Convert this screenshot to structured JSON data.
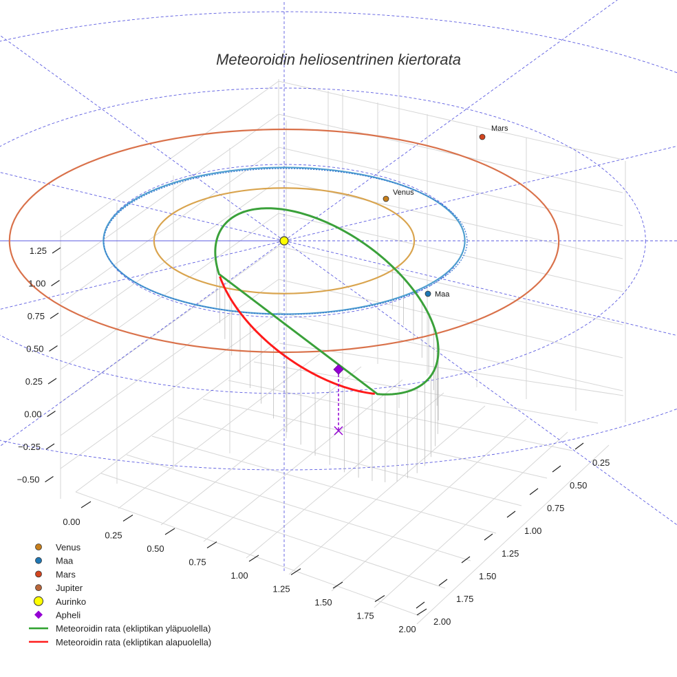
{
  "chart_data": {
    "type": "3d-line",
    "title": "Meteoroidin heliosentrinen kiertorata",
    "z_ticks": [
      "1.25",
      "1.00",
      "0.75",
      "0.50",
      "0.25",
      "0.00",
      "−0.25",
      "−0.50"
    ],
    "x_ticks": [
      "0.00",
      "0.25",
      "0.50",
      "0.75",
      "1.00",
      "1.25",
      "1.50",
      "1.75",
      "2.00"
    ],
    "y_ticks": [
      "0.25",
      "0.50",
      "0.75",
      "1.00",
      "1.25",
      "1.50",
      "1.75",
      "2.00"
    ],
    "sun": {
      "name": "Aurinko",
      "x": 0,
      "y": 0,
      "z": 0
    },
    "planets": [
      {
        "name": "Venus",
        "orbit_radius_au": 0.72,
        "label": "Venus"
      },
      {
        "name": "Maa",
        "orbit_radius_au": 1.0,
        "label": "Maa"
      },
      {
        "name": "Mars",
        "orbit_radius_au": 1.52,
        "label": "Mars"
      }
    ],
    "meteoroid_orbit": {
      "aphelion_distance_au": 1.13,
      "aphelion_height_au": 0.27,
      "above_ecliptic_series": "Meteoroidin rata (ekliptikan yläpuolella)",
      "below_ecliptic_series": "Meteoroidin rata (ekliptikan alapuolella)"
    },
    "legend": {
      "placement": "bottom-left",
      "entries": [
        {
          "label": "Venus",
          "marker": "circle",
          "color": "#d08a26"
        },
        {
          "label": "Maa",
          "marker": "circle",
          "color": "#1f77b4"
        },
        {
          "label": "Mars",
          "marker": "circle",
          "color": "#d2542a"
        },
        {
          "label": "Jupiter",
          "marker": "circle",
          "color": "#b9663a"
        },
        {
          "label": "Aurinko",
          "marker": "circle-large",
          "color": "#ffff00"
        },
        {
          "label": "Apheli",
          "marker": "diamond",
          "color": "#9400d3"
        },
        {
          "label": "Meteoroidin rata (ekliptikan yläpuolella)",
          "marker": "line",
          "color": "#2ca02c"
        },
        {
          "label": "Meteoroidin rata (ekliptikan alapuolella)",
          "marker": "line",
          "color": "#ff1a1a"
        }
      ]
    },
    "colors": {
      "venus_orbit": "#d9a44e",
      "earth_orbit_a": "#4f9fcf",
      "earth_orbit_b": "#2f6fd0",
      "mars_orbit": "#d9714a",
      "guide_lines": "#5a5ae0",
      "grid": "#d6d6d6"
    }
  }
}
